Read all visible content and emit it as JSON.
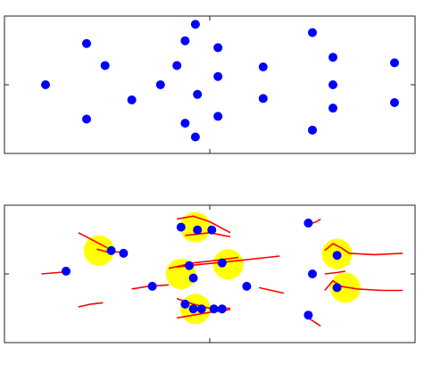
{
  "chart_data": [
    {
      "type": "scatter",
      "grid": false,
      "xlim": [
        0,
        100
      ],
      "ylim": [
        0,
        100
      ],
      "xticks": [
        50
      ],
      "yticks": [
        50
      ],
      "colors": {
        "point": "#0000ff"
      },
      "series": [
        {
          "points": [
            [
              10,
              50
            ],
            [
              20,
              80
            ],
            [
              20,
              25
            ],
            [
              24.5,
              64
            ],
            [
              31,
              39
            ],
            [
              38,
              50
            ],
            [
              42,
              64
            ],
            [
              44,
              82
            ],
            [
              44,
              22
            ],
            [
              46.5,
              94
            ],
            [
              46.5,
              12
            ],
            [
              47,
              43
            ],
            [
              52,
              77
            ],
            [
              52,
              56
            ],
            [
              52,
              27
            ],
            [
              63,
              63
            ],
            [
              63,
              40
            ],
            [
              75,
              88
            ],
            [
              75,
              17
            ],
            [
              80,
              70
            ],
            [
              80,
              50
            ],
            [
              80,
              33
            ],
            [
              95,
              66
            ],
            [
              95,
              37
            ]
          ]
        }
      ]
    },
    {
      "type": "scatter",
      "grid": false,
      "xlim": [
        0,
        100
      ],
      "ylim": [
        0,
        100
      ],
      "xticks": [
        50
      ],
      "yticks": [
        50
      ],
      "colors": {
        "point": "#0000ff",
        "track": "#ff0000",
        "highlight": "#ffff00"
      },
      "highlights": [
        [
          23,
          67
        ],
        [
          46.5,
          84
        ],
        [
          54.5,
          57
        ],
        [
          43,
          50
        ],
        [
          46.5,
          24.5
        ],
        [
          81,
          64.5
        ],
        [
          83,
          40
        ]
      ],
      "tracks": [
        [
          [
            18,
            80
          ],
          [
            22.5,
            73
          ],
          [
            25,
            69
          ]
        ],
        [
          [
            22.5,
            68
          ],
          [
            25,
            66
          ],
          [
            28,
            66
          ]
        ],
        [
          [
            9,
            50
          ],
          [
            13,
            51
          ],
          [
            16,
            52
          ]
        ],
        [
          [
            18,
            26
          ],
          [
            21,
            28
          ],
          [
            24,
            29
          ]
        ],
        [
          [
            31,
            39
          ],
          [
            35,
            41
          ],
          [
            40,
            42
          ]
        ],
        [
          [
            40,
            54
          ],
          [
            46,
            58
          ],
          [
            52,
            60
          ],
          [
            57,
            62
          ]
        ],
        [
          [
            42,
            90
          ],
          [
            46,
            92
          ],
          [
            50,
            88
          ],
          [
            55,
            80
          ]
        ],
        [
          [
            42,
            55
          ],
          [
            48,
            57
          ],
          [
            55,
            59
          ],
          [
            67,
            63
          ]
        ],
        [
          [
            44,
            78
          ],
          [
            50,
            80
          ],
          [
            55,
            77
          ]
        ],
        [
          [
            42,
            32
          ],
          [
            46,
            28
          ],
          [
            50,
            25
          ],
          [
            55,
            25
          ]
        ],
        [
          [
            42,
            18
          ],
          [
            46,
            20
          ],
          [
            50,
            22
          ],
          [
            55,
            24
          ]
        ],
        [
          [
            62,
            40
          ],
          [
            65,
            38
          ],
          [
            68,
            36
          ]
        ],
        [
          [
            74,
            86
          ],
          [
            76,
            88
          ],
          [
            77,
            90
          ]
        ],
        [
          [
            74,
            18
          ],
          [
            76,
            14
          ],
          [
            77,
            12
          ]
        ],
        [
          [
            78,
            50
          ],
          [
            81,
            51
          ],
          [
            83,
            52
          ]
        ],
        [
          [
            78,
            67
          ],
          [
            80,
            72
          ],
          [
            82,
            69
          ],
          [
            84,
            65
          ],
          [
            90,
            64
          ],
          [
            97,
            65
          ]
        ],
        [
          [
            78,
            38
          ],
          [
            80,
            45
          ],
          [
            82,
            41
          ],
          [
            86,
            39
          ],
          [
            92,
            38
          ],
          [
            97,
            38
          ]
        ]
      ],
      "series": [
        {
          "points": [
            [
              15,
              52
            ],
            [
              26,
              67
            ],
            [
              29,
              65
            ],
            [
              36,
              41
            ],
            [
              43,
              84
            ],
            [
              45,
              56
            ],
            [
              46,
              47
            ],
            [
              47,
              82
            ],
            [
              50.5,
              82
            ],
            [
              44,
              28
            ],
            [
              46,
              24.5
            ],
            [
              48,
              24.5
            ],
            [
              51,
              24.5
            ],
            [
              53,
              58
            ],
            [
              53,
              24.5
            ],
            [
              59,
              41
            ],
            [
              74,
              87
            ],
            [
              74,
              20
            ],
            [
              75,
              50
            ],
            [
              81,
              63.5
            ],
            [
              81,
              40
            ]
          ]
        }
      ]
    }
  ]
}
